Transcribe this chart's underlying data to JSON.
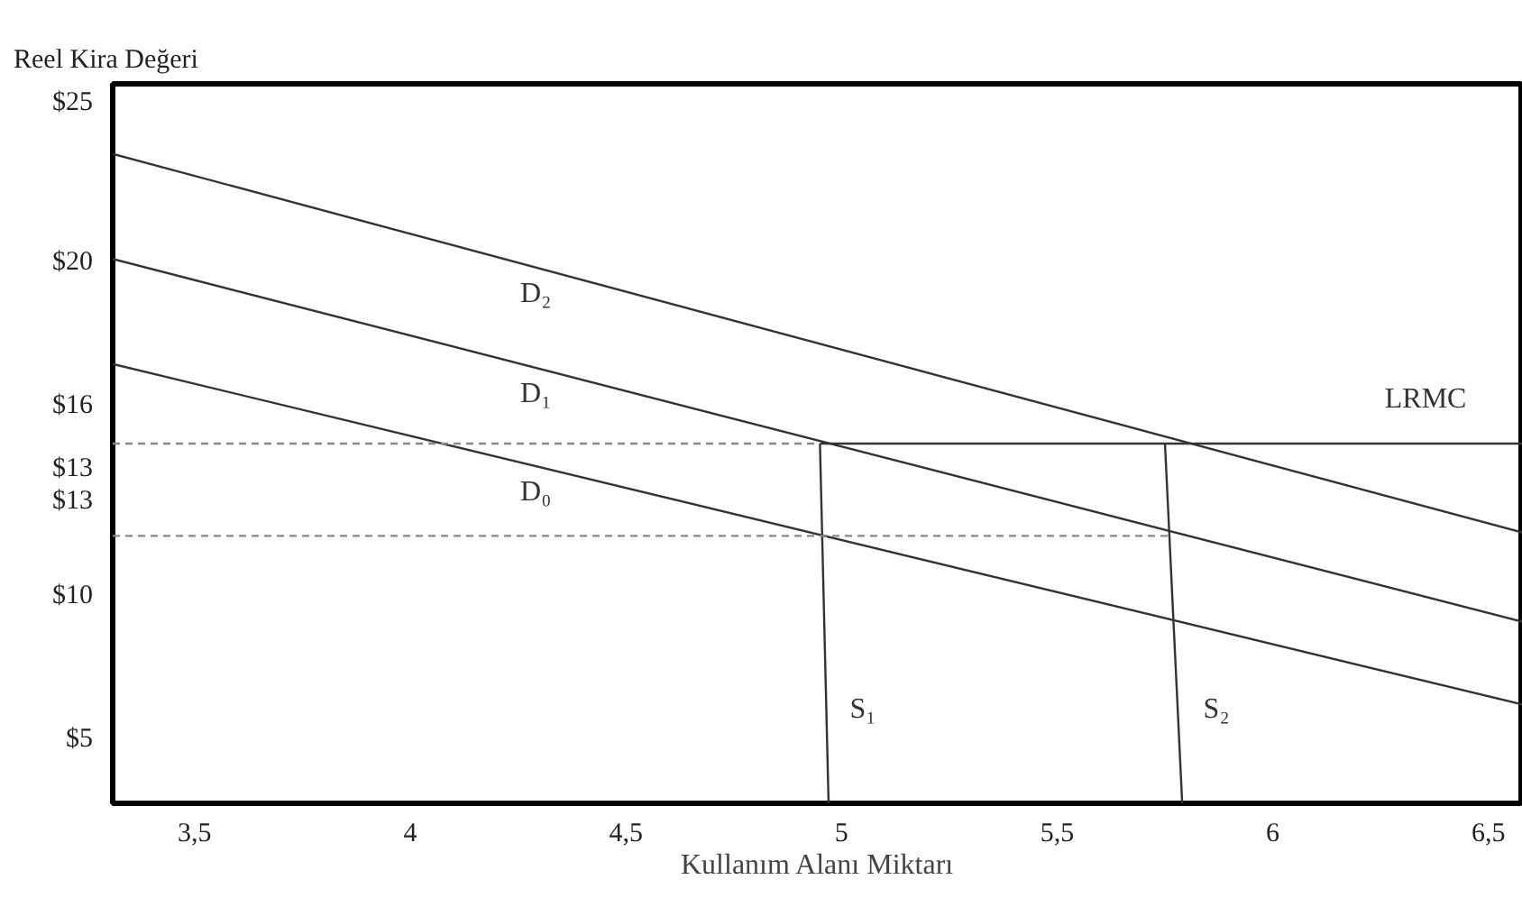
{
  "chart_data": {
    "type": "line",
    "ylabel": "Reel Kira Değeri",
    "xlabel": "Kullanım Alanı Miktarı",
    "xlim": [
      3.31,
      6.58
    ],
    "ylim": [
      3.0,
      25.6
    ],
    "xticks": [
      {
        "value": 3.5,
        "label": "3,5"
      },
      {
        "value": 4.0,
        "label": "4"
      },
      {
        "value": 4.5,
        "label": "4,5"
      },
      {
        "value": 5.0,
        "label": "5"
      },
      {
        "value": 5.5,
        "label": "5,5"
      },
      {
        "value": 6.0,
        "label": "6"
      },
      {
        "value": 6.5,
        "label": "6,5"
      }
    ],
    "yticks": [
      {
        "value": 25,
        "label": "$25"
      },
      {
        "value": 20,
        "label": "$20"
      },
      {
        "value": 15.5,
        "label": "$16"
      },
      {
        "value": 13.5,
        "label": "$13"
      },
      {
        "value": 12.5,
        "label": "$13"
      },
      {
        "value": 9.5,
        "label": "$10"
      },
      {
        "value": 5,
        "label": "$5"
      }
    ],
    "grid": false,
    "marker": "none",
    "series": [
      {
        "name": "D₂",
        "color": "#333333",
        "x": [
          3.31,
          6.58
        ],
        "values": [
          23.4,
          11.5
        ]
      },
      {
        "name": "D₁",
        "color": "#333333",
        "x": [
          3.31,
          6.58
        ],
        "values": [
          20.1,
          8.7
        ]
      },
      {
        "name": "D₀",
        "color": "#333333",
        "x": [
          3.31,
          6.58
        ],
        "values": [
          16.8,
          6.1
        ]
      },
      {
        "name": "S₁",
        "color": "#333333",
        "x": [
          4.95,
          4.97
        ],
        "values": [
          14.3,
          3.0
        ]
      },
      {
        "name": "S₂",
        "color": "#333333",
        "x": [
          5.75,
          5.79
        ],
        "values": [
          14.3,
          3.0
        ]
      },
      {
        "name": "LRMC",
        "color": "#333333",
        "x": [
          4.95,
          6.58
        ],
        "values": [
          14.3,
          14.3
        ]
      },
      {
        "color": "#888888",
        "line_style": "dashed",
        "x": [
          3.31,
          4.95
        ],
        "values": [
          14.3,
          14.3
        ]
      },
      {
        "color": "#888888",
        "line_style": "dashed",
        "x": [
          3.31,
          5.76
        ],
        "values": [
          11.4,
          11.4
        ]
      }
    ]
  }
}
